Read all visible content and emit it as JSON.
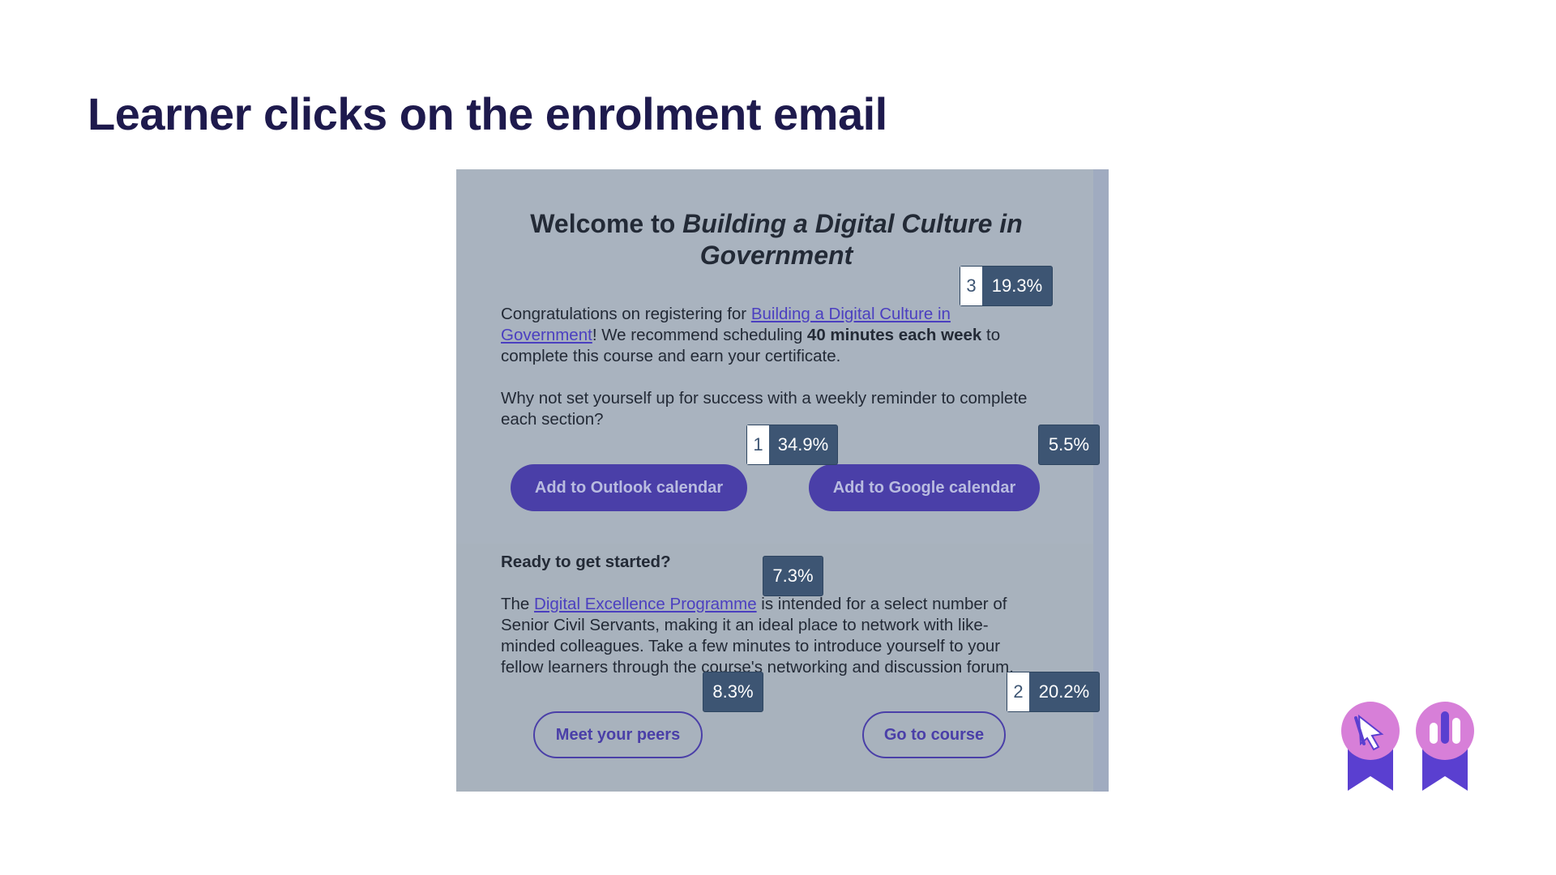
{
  "header": {
    "title": "Learner clicks on the enrolment email"
  },
  "email": {
    "heading": {
      "plain": "Welcome to ",
      "italic": "Building a Digital Culture in Government"
    },
    "paragraph1": {
      "text1": "Congratulations on registering for ",
      "link": "Building a Digital Culture in Government",
      "text2": "! We recommend scheduling ",
      "bold": "40 minutes each week",
      "text3": " to complete this course and earn your certificate."
    },
    "paragraph2": "Why not set yourself up for success with a weekly reminder to complete each section?",
    "buttons": [
      "Add to Outlook calendar",
      "Add to Google calendar",
      "Meet your peers",
      "Go to course"
    ],
    "subheading": "Ready to get started?",
    "paragraph3": {
      "text1": "The ",
      "link": "Digital Excellence Programme",
      "text2": " is intended for a select number of Senior Civil Servants, making it an ideal place to network with like-minded colleagues. Take a few minutes to introduce yourself to your fellow learners through the course's networking and discussion forum."
    }
  },
  "badges": [
    {
      "rank": "3",
      "label": "19.3%"
    },
    {
      "rank": "1",
      "label": "34.9%"
    },
    {
      "label": "5.5%"
    },
    {
      "label": "7.3%"
    },
    {
      "label": "8.3%"
    },
    {
      "rank": "2",
      "label": "20.2%"
    }
  ]
}
